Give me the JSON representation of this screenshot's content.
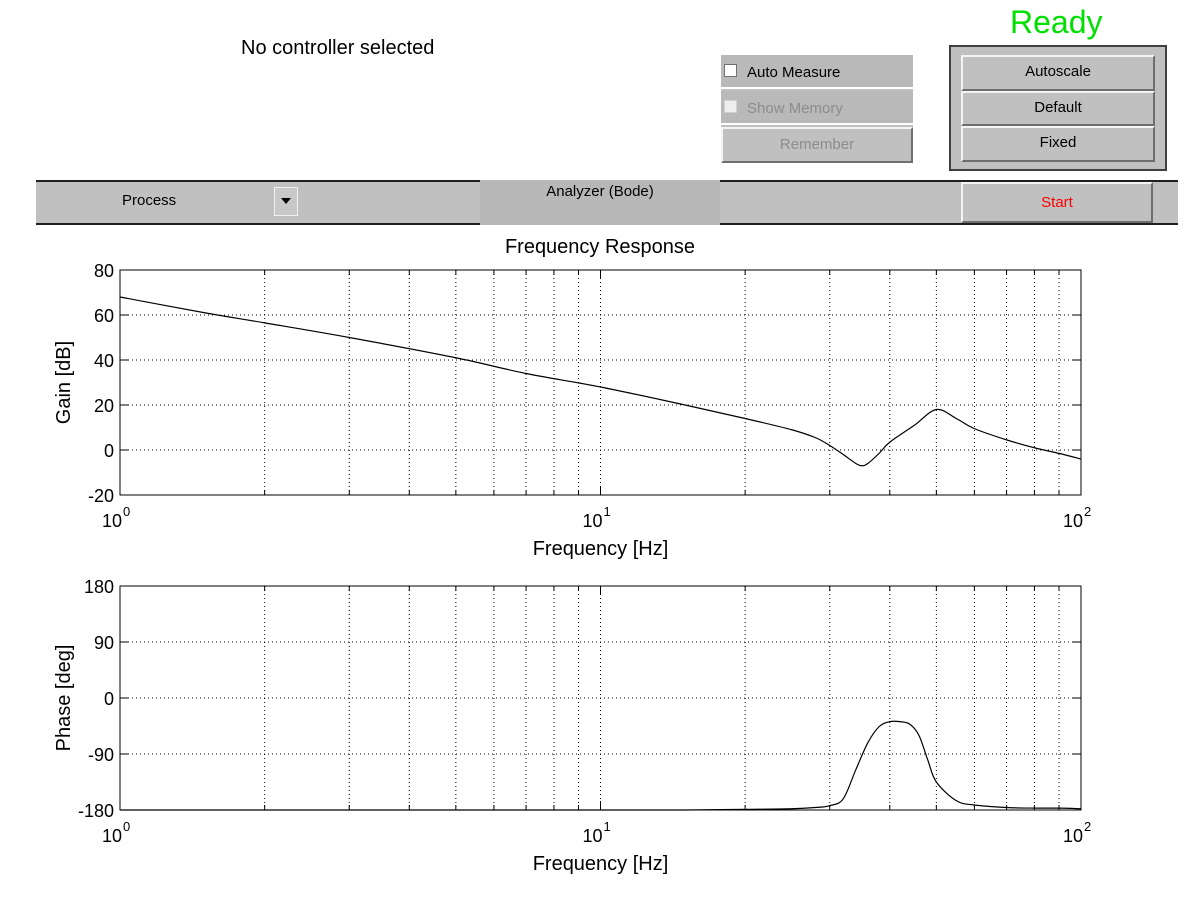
{
  "status": {
    "text": "Ready",
    "color": "#00e000"
  },
  "controller_text": "No controller selected",
  "options": {
    "auto_measure": {
      "label": "Auto Measure",
      "checked": false,
      "enabled": true
    },
    "show_memory": {
      "label": "Show Memory",
      "checked": false,
      "enabled": false
    },
    "remember": {
      "label": "Remember",
      "enabled": false
    }
  },
  "scale_buttons": [
    "Autoscale",
    "Default",
    "Fixed"
  ],
  "toolbar": {
    "source_select": {
      "value": "Process"
    },
    "analyzer_label": "Analyzer (Bode)",
    "start_label": "Start",
    "start_color": "#ff0000"
  },
  "chart_data": [
    {
      "type": "line",
      "title": "Frequency Response",
      "xlabel": "Frequency [Hz]",
      "ylabel": "Gain [dB]",
      "xscale": "log",
      "xlim": [
        1,
        100
      ],
      "ylim": [
        -20,
        80
      ],
      "yticks": [
        -20,
        0,
        20,
        40,
        60,
        80
      ],
      "xtick_labels": [
        {
          "base": "10",
          "exp": "0"
        },
        {
          "base": "10",
          "exp": "1"
        },
        {
          "base": "10",
          "exp": "2"
        }
      ],
      "grid": true,
      "series": [
        {
          "x": [
            1,
            1.5,
            2,
            3,
            5,
            7,
            10,
            15,
            20,
            25,
            28,
            30,
            32,
            34,
            35,
            36,
            38,
            40,
            45,
            50,
            55,
            60,
            70,
            80,
            90,
            100
          ],
          "y": [
            68,
            61,
            56.5,
            50,
            41,
            34,
            28,
            20,
            14,
            9,
            5.5,
            2,
            -2,
            -6,
            -7,
            -6,
            -1.5,
            3.5,
            11,
            18,
            14,
            9.5,
            4.5,
            1,
            -1.5,
            -4
          ]
        }
      ]
    },
    {
      "type": "line",
      "title": "",
      "xlabel": "Frequency [Hz]",
      "ylabel": "Phase [deg]",
      "xscale": "log",
      "xlim": [
        1,
        100
      ],
      "ylim": [
        -180,
        180
      ],
      "yticks": [
        -180,
        -90,
        0,
        90,
        180
      ],
      "xtick_labels": [
        {
          "base": "10",
          "exp": "0"
        },
        {
          "base": "10",
          "exp": "1"
        },
        {
          "base": "10",
          "exp": "2"
        }
      ],
      "grid": true,
      "series": [
        {
          "x": [
            1,
            5,
            10,
            15,
            20,
            25,
            28,
            30,
            32,
            34,
            36,
            38,
            40,
            42,
            44,
            46,
            48,
            50,
            55,
            60,
            70,
            80,
            90,
            100
          ],
          "y": [
            -180,
            -180,
            -180,
            -180,
            -179,
            -178,
            -176,
            -173,
            -162,
            -115,
            -72,
            -46,
            -38,
            -38,
            -42,
            -60,
            -100,
            -135,
            -165,
            -172,
            -176,
            -177,
            -177,
            -178
          ]
        }
      ]
    }
  ]
}
